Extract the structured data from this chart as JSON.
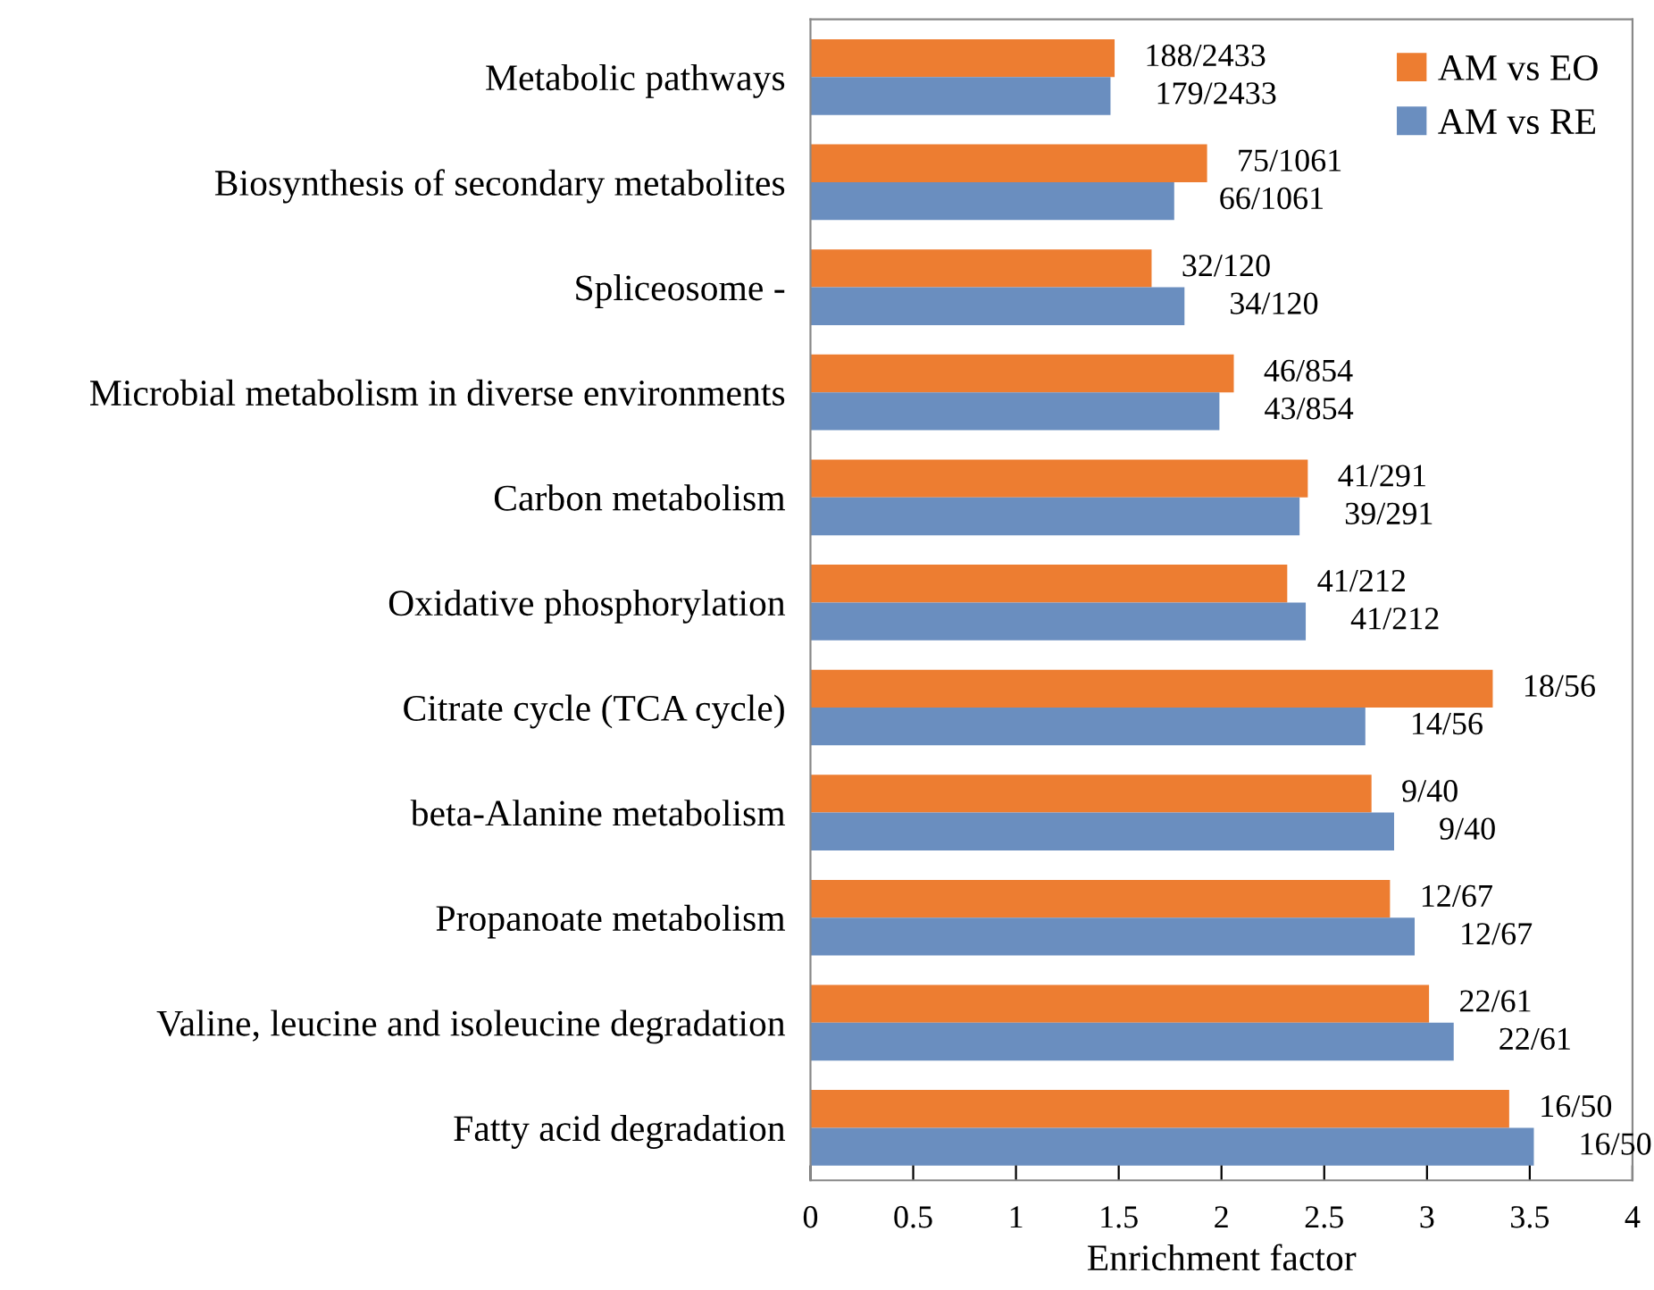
{
  "chart_data": {
    "type": "bar",
    "orientation": "horizontal",
    "xlabel": "Enrichment factor",
    "categories": [
      "Metabolic pathways",
      "Biosynthesis of secondary metabolites",
      "Spliceosome -",
      "Microbial metabolism in diverse environments",
      "Carbon metabolism",
      "Oxidative phosphorylation",
      "Citrate cycle (TCA cycle)",
      "beta-Alanine metabolism",
      "Propanoate metabolism",
      "Valine, leucine and isoleucine degradation",
      "Fatty acid degradation"
    ],
    "series": [
      {
        "name": "AM vs EO",
        "color": "#ed7d31",
        "values": [
          1.48,
          1.93,
          1.66,
          2.06,
          2.42,
          2.32,
          3.32,
          2.73,
          2.82,
          3.01,
          3.4
        ],
        "value_labels": [
          "188/2433",
          "75/1061",
          "32/120",
          "46/854",
          "41/291",
          "41/212",
          "18/56",
          "9/40",
          "12/67",
          "22/61",
          "16/50"
        ]
      },
      {
        "name": "AM vs RE",
        "color": "#6a8ebf",
        "values": [
          1.46,
          1.77,
          1.82,
          1.99,
          2.38,
          2.41,
          2.7,
          2.84,
          2.94,
          3.13,
          3.52
        ],
        "value_labels": [
          "179/2433",
          "66/1061",
          "34/120",
          "43/854",
          "39/291",
          "41/212",
          "14/56",
          "9/40",
          "12/67",
          "22/61",
          "16/50"
        ]
      }
    ],
    "xlim": [
      0,
      4
    ],
    "xticks": [
      0,
      0.5,
      1,
      1.5,
      2,
      2.5,
      3,
      3.5,
      4
    ],
    "grid": false,
    "legend": "top right"
  }
}
